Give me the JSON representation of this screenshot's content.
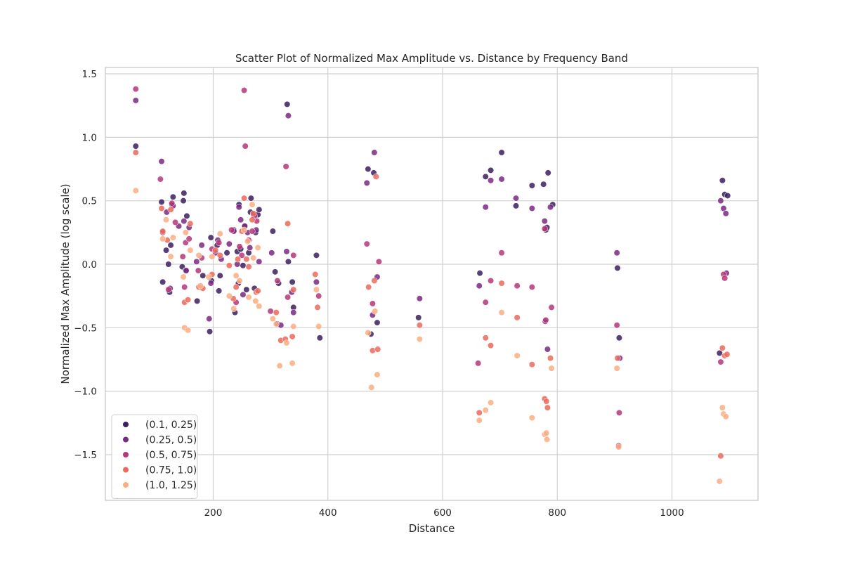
{
  "chart_data": {
    "type": "scatter",
    "title": "Scatter Plot of Normalized Max Amplitude vs. Distance by Frequency Band",
    "xlabel": "Distance",
    "ylabel": "Normalized Max Amplitude (log scale)",
    "xlim": [
      12,
      1150
    ],
    "ylim": [
      -1.86,
      1.55
    ],
    "xticks": [
      200,
      400,
      600,
      800,
      1000
    ],
    "xtick_labels": [
      "200",
      "400",
      "600",
      "800",
      "1000"
    ],
    "yticks": [
      -1.5,
      -1.0,
      -0.5,
      0.0,
      0.5,
      1.0,
      1.5
    ],
    "ytick_labels": [
      "−1.5",
      "−1.0",
      "−0.5",
      "0.0",
      "0.5",
      "1.0",
      "1.5"
    ],
    "grid": true,
    "legend_position": "lower-left",
    "series": [
      {
        "name": "(0.1, 0.25)",
        "color": "#3b1f5f",
        "points": [
          [
            65,
            0.93
          ],
          [
            110,
            0.49
          ],
          [
            112,
            -0.14
          ],
          [
            118,
            0.11
          ],
          [
            122,
            0.0
          ],
          [
            124,
            -0.22
          ],
          [
            126,
            0.15
          ],
          [
            128,
            0.47
          ],
          [
            130,
            0.53
          ],
          [
            146,
            -0.02
          ],
          [
            148,
            0.5
          ],
          [
            149,
            0.56
          ],
          [
            152,
            -0.05
          ],
          [
            154,
            0.38
          ],
          [
            172,
            -0.29
          ],
          [
            182,
            -0.09
          ],
          [
            194,
            -0.53
          ],
          [
            196,
            0.21
          ],
          [
            197,
            -0.13
          ],
          [
            207,
            0.15
          ],
          [
            210,
            -0.21
          ],
          [
            212,
            -0.09
          ],
          [
            224,
            0.09
          ],
          [
            236,
            0.27
          ],
          [
            238,
            -0.38
          ],
          [
            242,
            0.1
          ],
          [
            244,
            -0.15
          ],
          [
            245,
            0.47
          ],
          [
            248,
            0.12
          ],
          [
            252,
            -0.01
          ],
          [
            255,
            0.3
          ],
          [
            258,
            -0.2
          ],
          [
            262,
            0.09
          ],
          [
            265,
            0.41
          ],
          [
            266,
            0.52
          ],
          [
            272,
            -0.19
          ],
          [
            274,
            0.25
          ],
          [
            278,
            0.39
          ],
          [
            280,
            0.43
          ],
          [
            304,
            0.26
          ],
          [
            308,
            -0.06
          ],
          [
            314,
            -0.15
          ],
          [
            329,
            1.26
          ],
          [
            331,
            0.02
          ],
          [
            338,
            -0.14
          ],
          [
            340,
            -0.34
          ],
          [
            380,
            0.07
          ],
          [
            386,
            -0.58
          ],
          [
            470,
            0.75
          ],
          [
            475,
            -0.55
          ],
          [
            480,
            0.72
          ],
          [
            486,
            -0.46
          ],
          [
            558,
            -0.42
          ],
          [
            665,
            -0.07
          ],
          [
            675,
            0.69
          ],
          [
            684,
            0.74
          ],
          [
            703,
            0.88
          ],
          [
            728,
            0.46
          ],
          [
            756,
            0.62
          ],
          [
            776,
            0.63
          ],
          [
            780,
            0.27
          ],
          [
            782,
            0.29
          ],
          [
            784,
            0.72
          ],
          [
            792,
            0.47
          ],
          [
            905,
            -0.03
          ],
          [
            908,
            -0.58
          ],
          [
            1083,
            -0.7
          ],
          [
            1088,
            0.66
          ],
          [
            1092,
            0.55
          ],
          [
            1097,
            0.54
          ]
        ]
      },
      {
        "name": "(0.25, 0.5)",
        "color": "#7b2a83",
        "points": [
          [
            65,
            1.29
          ],
          [
            110,
            0.81
          ],
          [
            119,
            0.41
          ],
          [
            125,
            -0.19
          ],
          [
            130,
            0.46
          ],
          [
            140,
            0.3
          ],
          [
            149,
            0.34
          ],
          [
            153,
            -0.05
          ],
          [
            158,
            0.29
          ],
          [
            171,
            0.02
          ],
          [
            180,
            0.15
          ],
          [
            193,
            -0.43
          ],
          [
            196,
            -0.15
          ],
          [
            204,
            0.09
          ],
          [
            208,
            0.19
          ],
          [
            214,
            0.04
          ],
          [
            228,
            0.16
          ],
          [
            236,
            0.26
          ],
          [
            242,
            0.0
          ],
          [
            245,
            0.45
          ],
          [
            248,
            0.35
          ],
          [
            252,
            -0.24
          ],
          [
            255,
            0.3
          ],
          [
            260,
            0.25
          ],
          [
            264,
            0.13
          ],
          [
            270,
            0.39
          ],
          [
            275,
            0.27
          ],
          [
            280,
            0.02
          ],
          [
            302,
            0.09
          ],
          [
            312,
            -0.47
          ],
          [
            318,
            -0.48
          ],
          [
            328,
            0.1
          ],
          [
            331,
            1.17
          ],
          [
            337,
            -0.22
          ],
          [
            340,
            -0.38
          ],
          [
            380,
            -0.14
          ],
          [
            468,
            0.64
          ],
          [
            478,
            -0.4
          ],
          [
            481,
            0.88
          ],
          [
            486,
            -0.1
          ],
          [
            560,
            -0.27
          ],
          [
            664,
            -0.17
          ],
          [
            675,
            0.45
          ],
          [
            684,
            0.66
          ],
          [
            703,
            0.67
          ],
          [
            728,
            0.52
          ],
          [
            756,
            0.44
          ],
          [
            778,
            0.34
          ],
          [
            779,
            -0.45
          ],
          [
            783,
            -0.67
          ],
          [
            788,
            0.45
          ],
          [
            904,
            0.09
          ],
          [
            909,
            -0.74
          ],
          [
            1085,
            0.5
          ],
          [
            1090,
            0.44
          ],
          [
            1094,
            0.4
          ],
          [
            1095,
            -0.07
          ]
        ]
      },
      {
        "name": "(0.5, 0.75)",
        "color": "#b73779",
        "points": [
          [
            65,
            1.38
          ],
          [
            108,
            0.67
          ],
          [
            112,
            0.25
          ],
          [
            122,
            -0.2
          ],
          [
            128,
            0.48
          ],
          [
            134,
            0.33
          ],
          [
            147,
            0.06
          ],
          [
            150,
            -0.18
          ],
          [
            152,
            0.17
          ],
          [
            158,
            0.2
          ],
          [
            174,
            -0.05
          ],
          [
            180,
            0.05
          ],
          [
            198,
            0.12
          ],
          [
            210,
            0.17
          ],
          [
            232,
            0.27
          ],
          [
            240,
            -0.3
          ],
          [
            246,
            0.14
          ],
          [
            250,
            0.07
          ],
          [
            254,
            1.37
          ],
          [
            256,
            0.93
          ],
          [
            262,
            0.19
          ],
          [
            268,
            0.26
          ],
          [
            272,
            0.38
          ],
          [
            276,
            0.34
          ],
          [
            300,
            -0.37
          ],
          [
            312,
            -0.13
          ],
          [
            327,
            0.77
          ],
          [
            330,
            -0.26
          ],
          [
            340,
            0.07
          ],
          [
            384,
            -0.25
          ],
          [
            468,
            0.16
          ],
          [
            478,
            -0.31
          ],
          [
            489,
            0.02
          ],
          [
            662,
            -0.78
          ],
          [
            675,
            -0.3
          ],
          [
            684,
            -0.13
          ],
          [
            703,
            0.09
          ],
          [
            730,
            -0.17
          ],
          [
            756,
            -0.18
          ],
          [
            778,
            0.28
          ],
          [
            780,
            -0.44
          ],
          [
            790,
            -0.34
          ],
          [
            904,
            -0.48
          ],
          [
            908,
            -1.17
          ],
          [
            907,
            -1.43
          ],
          [
            1085,
            -0.77
          ],
          [
            1090,
            -0.08
          ],
          [
            1092,
            -0.11
          ]
        ]
      },
      {
        "name": "(0.75, 1.0)",
        "color": "#ec6a5b",
        "points": [
          [
            65,
            0.88
          ],
          [
            110,
            0.44
          ],
          [
            112,
            0.26
          ],
          [
            120,
            0.19
          ],
          [
            126,
            0.43
          ],
          [
            150,
            -0.3
          ],
          [
            156,
            -0.28
          ],
          [
            160,
            0.32
          ],
          [
            175,
            -0.18
          ],
          [
            182,
            -0.19
          ],
          [
            198,
            -0.08
          ],
          [
            204,
            0.11
          ],
          [
            212,
            0.07
          ],
          [
            228,
            -0.01
          ],
          [
            235,
            -0.27
          ],
          [
            240,
            -0.18
          ],
          [
            243,
            0.04
          ],
          [
            250,
            0.26
          ],
          [
            254,
            0.52
          ],
          [
            258,
            0.04
          ],
          [
            262,
            -0.02
          ],
          [
            268,
            0.35
          ],
          [
            270,
            0.4
          ],
          [
            275,
            -0.22
          ],
          [
            278,
            -0.21
          ],
          [
            310,
            -0.38
          ],
          [
            318,
            -0.6
          ],
          [
            326,
            -0.59
          ],
          [
            330,
            0.32
          ],
          [
            338,
            -0.57
          ],
          [
            340,
            -0.2
          ],
          [
            378,
            -0.08
          ],
          [
            382,
            -0.34
          ],
          [
            471,
            -0.18
          ],
          [
            478,
            -0.68
          ],
          [
            481,
            -0.13
          ],
          [
            484,
            0.69
          ],
          [
            487,
            -0.67
          ],
          [
            560,
            -0.48
          ],
          [
            664,
            -1.17
          ],
          [
            675,
            -0.58
          ],
          [
            684,
            -0.64
          ],
          [
            703,
            -0.15
          ],
          [
            730,
            -0.42
          ],
          [
            756,
            -0.79
          ],
          [
            778,
            -1.06
          ],
          [
            781,
            -1.08
          ],
          [
            783,
            -1.13
          ],
          [
            788,
            -0.74
          ],
          [
            905,
            -0.74
          ],
          [
            1085,
            -1.51
          ],
          [
            1088,
            -0.66
          ],
          [
            1092,
            -0.72
          ],
          [
            1096,
            -0.71
          ]
        ]
      },
      {
        "name": "(1.0, 1.25)",
        "color": "#fcae82",
        "points": [
          [
            65,
            0.58
          ],
          [
            112,
            0.2
          ],
          [
            118,
            0.35
          ],
          [
            126,
            0.06
          ],
          [
            130,
            0.21
          ],
          [
            148,
            -0.1
          ],
          [
            150,
            -0.5
          ],
          [
            152,
            0.25
          ],
          [
            156,
            -0.52
          ],
          [
            160,
            0.11
          ],
          [
            175,
            0.07
          ],
          [
            178,
            -0.17
          ],
          [
            192,
            -0.1
          ],
          [
            198,
            0.06
          ],
          [
            212,
            0.24
          ],
          [
            228,
            -0.25
          ],
          [
            236,
            -0.35
          ],
          [
            240,
            -0.09
          ],
          [
            246,
            -0.13
          ],
          [
            254,
            0.27
          ],
          [
            260,
            0.18
          ],
          [
            262,
            -0.26
          ],
          [
            268,
            0.47
          ],
          [
            270,
            0.05
          ],
          [
            274,
            -0.29
          ],
          [
            278,
            0.13
          ],
          [
            280,
            -0.33
          ],
          [
            304,
            -0.43
          ],
          [
            310,
            -0.47
          ],
          [
            316,
            -0.8
          ],
          [
            328,
            -0.62
          ],
          [
            338,
            -0.78
          ],
          [
            340,
            -0.49
          ],
          [
            380,
            -0.2
          ],
          [
            384,
            -0.49
          ],
          [
            470,
            -0.54
          ],
          [
            476,
            -0.97
          ],
          [
            482,
            -0.37
          ],
          [
            486,
            -0.87
          ],
          [
            560,
            -0.59
          ],
          [
            664,
            -1.23
          ],
          [
            675,
            -1.15
          ],
          [
            684,
            -1.09
          ],
          [
            703,
            -0.38
          ],
          [
            730,
            -0.72
          ],
          [
            756,
            -1.21
          ],
          [
            778,
            -1.34
          ],
          [
            781,
            -1.33
          ],
          [
            782,
            -1.38
          ],
          [
            790,
            -0.82
          ],
          [
            904,
            -0.82
          ],
          [
            907,
            -1.44
          ],
          [
            1083,
            -1.71
          ],
          [
            1088,
            -1.13
          ],
          [
            1090,
            -1.18
          ],
          [
            1094,
            -1.2
          ]
        ]
      }
    ]
  }
}
